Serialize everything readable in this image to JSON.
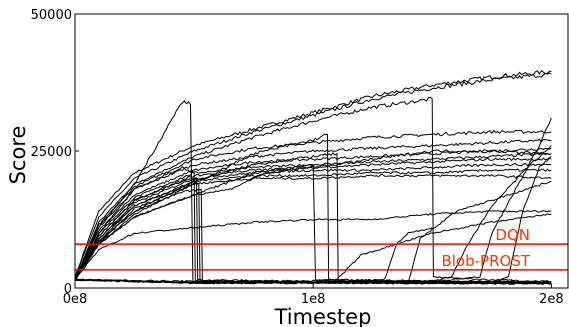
{
  "chart_data": {
    "type": "line",
    "title": "",
    "xlabel": "Timestep",
    "ylabel": "Score",
    "xlim": [
      0,
      207000000
    ],
    "ylim": [
      0,
      50000
    ],
    "x_ticks": [
      {
        "value": 0,
        "label": "0e8"
      },
      {
        "value": 100000000,
        "label": "1e8"
      },
      {
        "value": 200000000,
        "label": "2e8"
      }
    ],
    "y_ticks": [
      {
        "value": 0,
        "label": "0"
      },
      {
        "value": 25000,
        "label": "25000"
      },
      {
        "value": 50000,
        "label": "50000"
      }
    ],
    "reference_lines": [
      {
        "name": "DQN",
        "value": 8000,
        "color": "#ff0000",
        "label_color": "#ff3300"
      },
      {
        "name": "Blob-PROST",
        "value": 3300,
        "color": "#ff0000",
        "label_color": "#ff3300"
      }
    ],
    "series_color": "#000000",
    "grid": false,
    "series": [
      {
        "points": [
          [
            0,
            2000
          ],
          [
            10000000,
            14000
          ],
          [
            25000000,
            21000
          ],
          [
            50000000,
            26000
          ],
          [
            75000000,
            29000
          ],
          [
            100000000,
            32000
          ],
          [
            125000000,
            35000
          ],
          [
            150000000,
            37000
          ],
          [
            175000000,
            38500
          ],
          [
            200000000,
            39500
          ]
        ]
      },
      {
        "points": [
          [
            0,
            2000
          ],
          [
            10000000,
            13000
          ],
          [
            25000000,
            20000
          ],
          [
            50000000,
            25000
          ],
          [
            75000000,
            28500
          ],
          [
            100000000,
            31500
          ],
          [
            125000000,
            34500
          ],
          [
            150000000,
            36500
          ],
          [
            175000000,
            38000
          ],
          [
            200000000,
            39000
          ]
        ]
      },
      {
        "points": [
          [
            0,
            1500
          ],
          [
            10000000,
            12000
          ],
          [
            25000000,
            19000
          ],
          [
            50000000,
            24000
          ],
          [
            75000000,
            27500
          ],
          [
            100000000,
            30500
          ],
          [
            125000000,
            33000
          ],
          [
            150000000,
            34500
          ],
          [
            150500000,
            2000
          ],
          [
            175000000,
            1500
          ],
          [
            200000000,
            1200
          ]
        ]
      },
      {
        "points": [
          [
            0,
            1500
          ],
          [
            10000000,
            11500
          ],
          [
            25000000,
            18500
          ],
          [
            50000000,
            23500
          ],
          [
            75000000,
            25500
          ],
          [
            100000000,
            26500
          ],
          [
            125000000,
            27500
          ],
          [
            150000000,
            28000
          ],
          [
            175000000,
            28500
          ],
          [
            200000000,
            28500
          ]
        ]
      },
      {
        "points": [
          [
            0,
            1500
          ],
          [
            10000000,
            11000
          ],
          [
            25000000,
            18000
          ],
          [
            50000000,
            22500
          ],
          [
            75000000,
            24000
          ],
          [
            100000000,
            25000
          ],
          [
            125000000,
            25500
          ],
          [
            150000000,
            26000
          ],
          [
            175000000,
            26500
          ],
          [
            200000000,
            27000
          ]
        ]
      },
      {
        "points": [
          [
            0,
            1500
          ],
          [
            10000000,
            10500
          ],
          [
            25000000,
            17000
          ],
          [
            50000000,
            21500
          ],
          [
            75000000,
            23000
          ],
          [
            100000000,
            23500
          ],
          [
            125000000,
            24000
          ],
          [
            150000000,
            24500
          ],
          [
            175000000,
            25000
          ],
          [
            200000000,
            25500
          ]
        ]
      },
      {
        "points": [
          [
            0,
            1500
          ],
          [
            10000000,
            10000
          ],
          [
            25000000,
            16500
          ],
          [
            50000000,
            21000
          ],
          [
            75000000,
            22000
          ],
          [
            100000000,
            22500
          ],
          [
            125000000,
            23000
          ],
          [
            150000000,
            23500
          ],
          [
            175000000,
            24000
          ],
          [
            200000000,
            24500
          ]
        ]
      },
      {
        "points": [
          [
            0,
            1500
          ],
          [
            10000000,
            9500
          ],
          [
            25000000,
            16000
          ],
          [
            50000000,
            20500
          ],
          [
            75000000,
            21500
          ],
          [
            100000000,
            22000
          ],
          [
            125000000,
            22500
          ],
          [
            150000000,
            23000
          ],
          [
            175000000,
            23500
          ],
          [
            200000000,
            23500
          ]
        ]
      },
      {
        "points": [
          [
            0,
            1500
          ],
          [
            10000000,
            9000
          ],
          [
            25000000,
            15500
          ],
          [
            50000000,
            20000
          ],
          [
            75000000,
            21000
          ],
          [
            100000000,
            21500
          ],
          [
            125000000,
            21500
          ],
          [
            150000000,
            22000
          ],
          [
            175000000,
            22500
          ],
          [
            200000000,
            22500
          ]
        ]
      },
      {
        "points": [
          [
            0,
            1500
          ],
          [
            10000000,
            8500
          ],
          [
            25000000,
            15000
          ],
          [
            50000000,
            19500
          ],
          [
            75000000,
            20500
          ],
          [
            100000000,
            20500
          ],
          [
            125000000,
            21000
          ],
          [
            150000000,
            21000
          ],
          [
            175000000,
            21500
          ],
          [
            200000000,
            21500
          ]
        ]
      },
      {
        "points": [
          [
            0,
            1500
          ],
          [
            10000000,
            8000
          ],
          [
            25000000,
            14500
          ],
          [
            50000000,
            19000
          ],
          [
            75000000,
            20000
          ],
          [
            100000000,
            20000
          ],
          [
            125000000,
            20500
          ],
          [
            150000000,
            20500
          ],
          [
            175000000,
            20500
          ],
          [
            200000000,
            20000
          ]
        ]
      },
      {
        "points": [
          [
            0,
            1500
          ],
          [
            10000000,
            11000
          ],
          [
            25000000,
            19000
          ],
          [
            45000000,
            34000
          ],
          [
            48500000,
            33500
          ],
          [
            49500000,
            1000
          ],
          [
            100000000,
            900
          ],
          [
            200000000,
            800
          ]
        ]
      },
      {
        "points": [
          [
            0,
            1500
          ],
          [
            10000000,
            10000
          ],
          [
            25000000,
            18000
          ],
          [
            45000000,
            22000
          ],
          [
            50000000,
            21000
          ],
          [
            50500000,
            1200
          ],
          [
            100000000,
            1000
          ],
          [
            200000000,
            900
          ]
        ]
      },
      {
        "points": [
          [
            0,
            1500
          ],
          [
            10000000,
            9500
          ],
          [
            25000000,
            16000
          ],
          [
            45000000,
            19500
          ],
          [
            51000000,
            20000
          ],
          [
            51500000,
            1500
          ],
          [
            100000000,
            1200
          ],
          [
            200000000,
            1000
          ]
        ]
      },
      {
        "points": [
          [
            0,
            1500
          ],
          [
            10000000,
            9000
          ],
          [
            25000000,
            15000
          ],
          [
            45000000,
            18500
          ],
          [
            52000000,
            19000
          ],
          [
            52500000,
            1300
          ],
          [
            100000000,
            1100
          ],
          [
            200000000,
            900
          ]
        ]
      },
      {
        "points": [
          [
            0,
            1500
          ],
          [
            10000000,
            8500
          ],
          [
            25000000,
            14000
          ],
          [
            45000000,
            17500
          ],
          [
            53000000,
            18000
          ],
          [
            53500000,
            1100
          ],
          [
            100000000,
            1000
          ],
          [
            200000000,
            800
          ]
        ]
      },
      {
        "points": [
          [
            0,
            1500
          ],
          [
            10000000,
            8000
          ],
          [
            25000000,
            13000
          ],
          [
            50000000,
            17000
          ],
          [
            75000000,
            21000
          ],
          [
            100000000,
            22500
          ],
          [
            101000000,
            1500
          ],
          [
            150000000,
            1300
          ],
          [
            200000000,
            1100
          ]
        ]
      },
      {
        "points": [
          [
            0,
            1500
          ],
          [
            10000000,
            8000
          ],
          [
            25000000,
            13500
          ],
          [
            50000000,
            19000
          ],
          [
            75000000,
            24500
          ],
          [
            100000000,
            27000
          ],
          [
            106000000,
            28000
          ],
          [
            106500000,
            1300
          ],
          [
            150000000,
            1200
          ],
          [
            200000000,
            1000
          ]
        ]
      },
      {
        "points": [
          [
            0,
            1500
          ],
          [
            10000000,
            8500
          ],
          [
            25000000,
            14000
          ],
          [
            50000000,
            19500
          ],
          [
            75000000,
            22500
          ],
          [
            100000000,
            24000
          ],
          [
            110000000,
            24500
          ],
          [
            110500000,
            1100
          ],
          [
            150000000,
            1000
          ],
          [
            200000000,
            900
          ]
        ]
      },
      {
        "points": [
          [
            0,
            1500
          ],
          [
            10000000,
            7000
          ],
          [
            25000000,
            10000
          ],
          [
            50000000,
            11000
          ],
          [
            75000000,
            12000
          ],
          [
            100000000,
            12500
          ],
          [
            125000000,
            12500
          ],
          [
            150000000,
            13500
          ],
          [
            175000000,
            14000
          ],
          [
            200000000,
            14000
          ]
        ]
      },
      {
        "points": [
          [
            0,
            1500
          ],
          [
            10000000,
            8000
          ],
          [
            25000000,
            13000
          ],
          [
            50000000,
            17000
          ],
          [
            65000000,
            18000
          ],
          [
            80000000,
            21000
          ],
          [
            100000000,
            22000
          ],
          [
            125000000,
            23500
          ],
          [
            150000000,
            25000
          ],
          [
            175000000,
            25000
          ],
          [
            200000000,
            24500
          ]
        ]
      },
      {
        "points": [
          [
            0,
            1500
          ],
          [
            50000000,
            1200
          ],
          [
            100000000,
            1300
          ],
          [
            110000000,
            1500
          ],
          [
            120000000,
            6000
          ],
          [
            150000000,
            10000
          ],
          [
            175000000,
            12000
          ],
          [
            200000000,
            13500
          ]
        ]
      },
      {
        "points": [
          [
            0,
            1500
          ],
          [
            50000000,
            1000
          ],
          [
            100000000,
            1100
          ],
          [
            130000000,
            1500
          ],
          [
            135000000,
            8000
          ],
          [
            140000000,
            10000
          ],
          [
            150000000,
            11000
          ]
        ]
      },
      {
        "points": [
          [
            0,
            1500
          ],
          [
            50000000,
            1000
          ],
          [
            100000000,
            1000
          ],
          [
            140000000,
            1200
          ],
          [
            145000000,
            9000
          ],
          [
            160000000,
            14000
          ],
          [
            175000000,
            16000
          ],
          [
            200000000,
            19500
          ]
        ]
      },
      {
        "points": [
          [
            0,
            1500
          ],
          [
            50000000,
            1000
          ],
          [
            100000000,
            1000
          ],
          [
            150000000,
            1300
          ],
          [
            158000000,
            2000
          ],
          [
            165000000,
            8000
          ],
          [
            175000000,
            15000
          ],
          [
            190000000,
            22000
          ],
          [
            200000000,
            26000
          ]
        ]
      },
      {
        "points": [
          [
            0,
            1500
          ],
          [
            50000000,
            900
          ],
          [
            100000000,
            1000
          ],
          [
            150000000,
            1200
          ],
          [
            170000000,
            2000
          ],
          [
            175000000,
            10000
          ],
          [
            185000000,
            18000
          ],
          [
            195000000,
            26000
          ],
          [
            200000000,
            31000
          ]
        ]
      },
      {
        "points": [
          [
            0,
            1500
          ],
          [
            50000000,
            900
          ],
          [
            100000000,
            900
          ],
          [
            150000000,
            1000
          ],
          [
            175000000,
            1200
          ],
          [
            182000000,
            2000
          ],
          [
            188000000,
            14000
          ],
          [
            195000000,
            22000
          ],
          [
            200000000,
            24000
          ]
        ]
      }
    ]
  }
}
